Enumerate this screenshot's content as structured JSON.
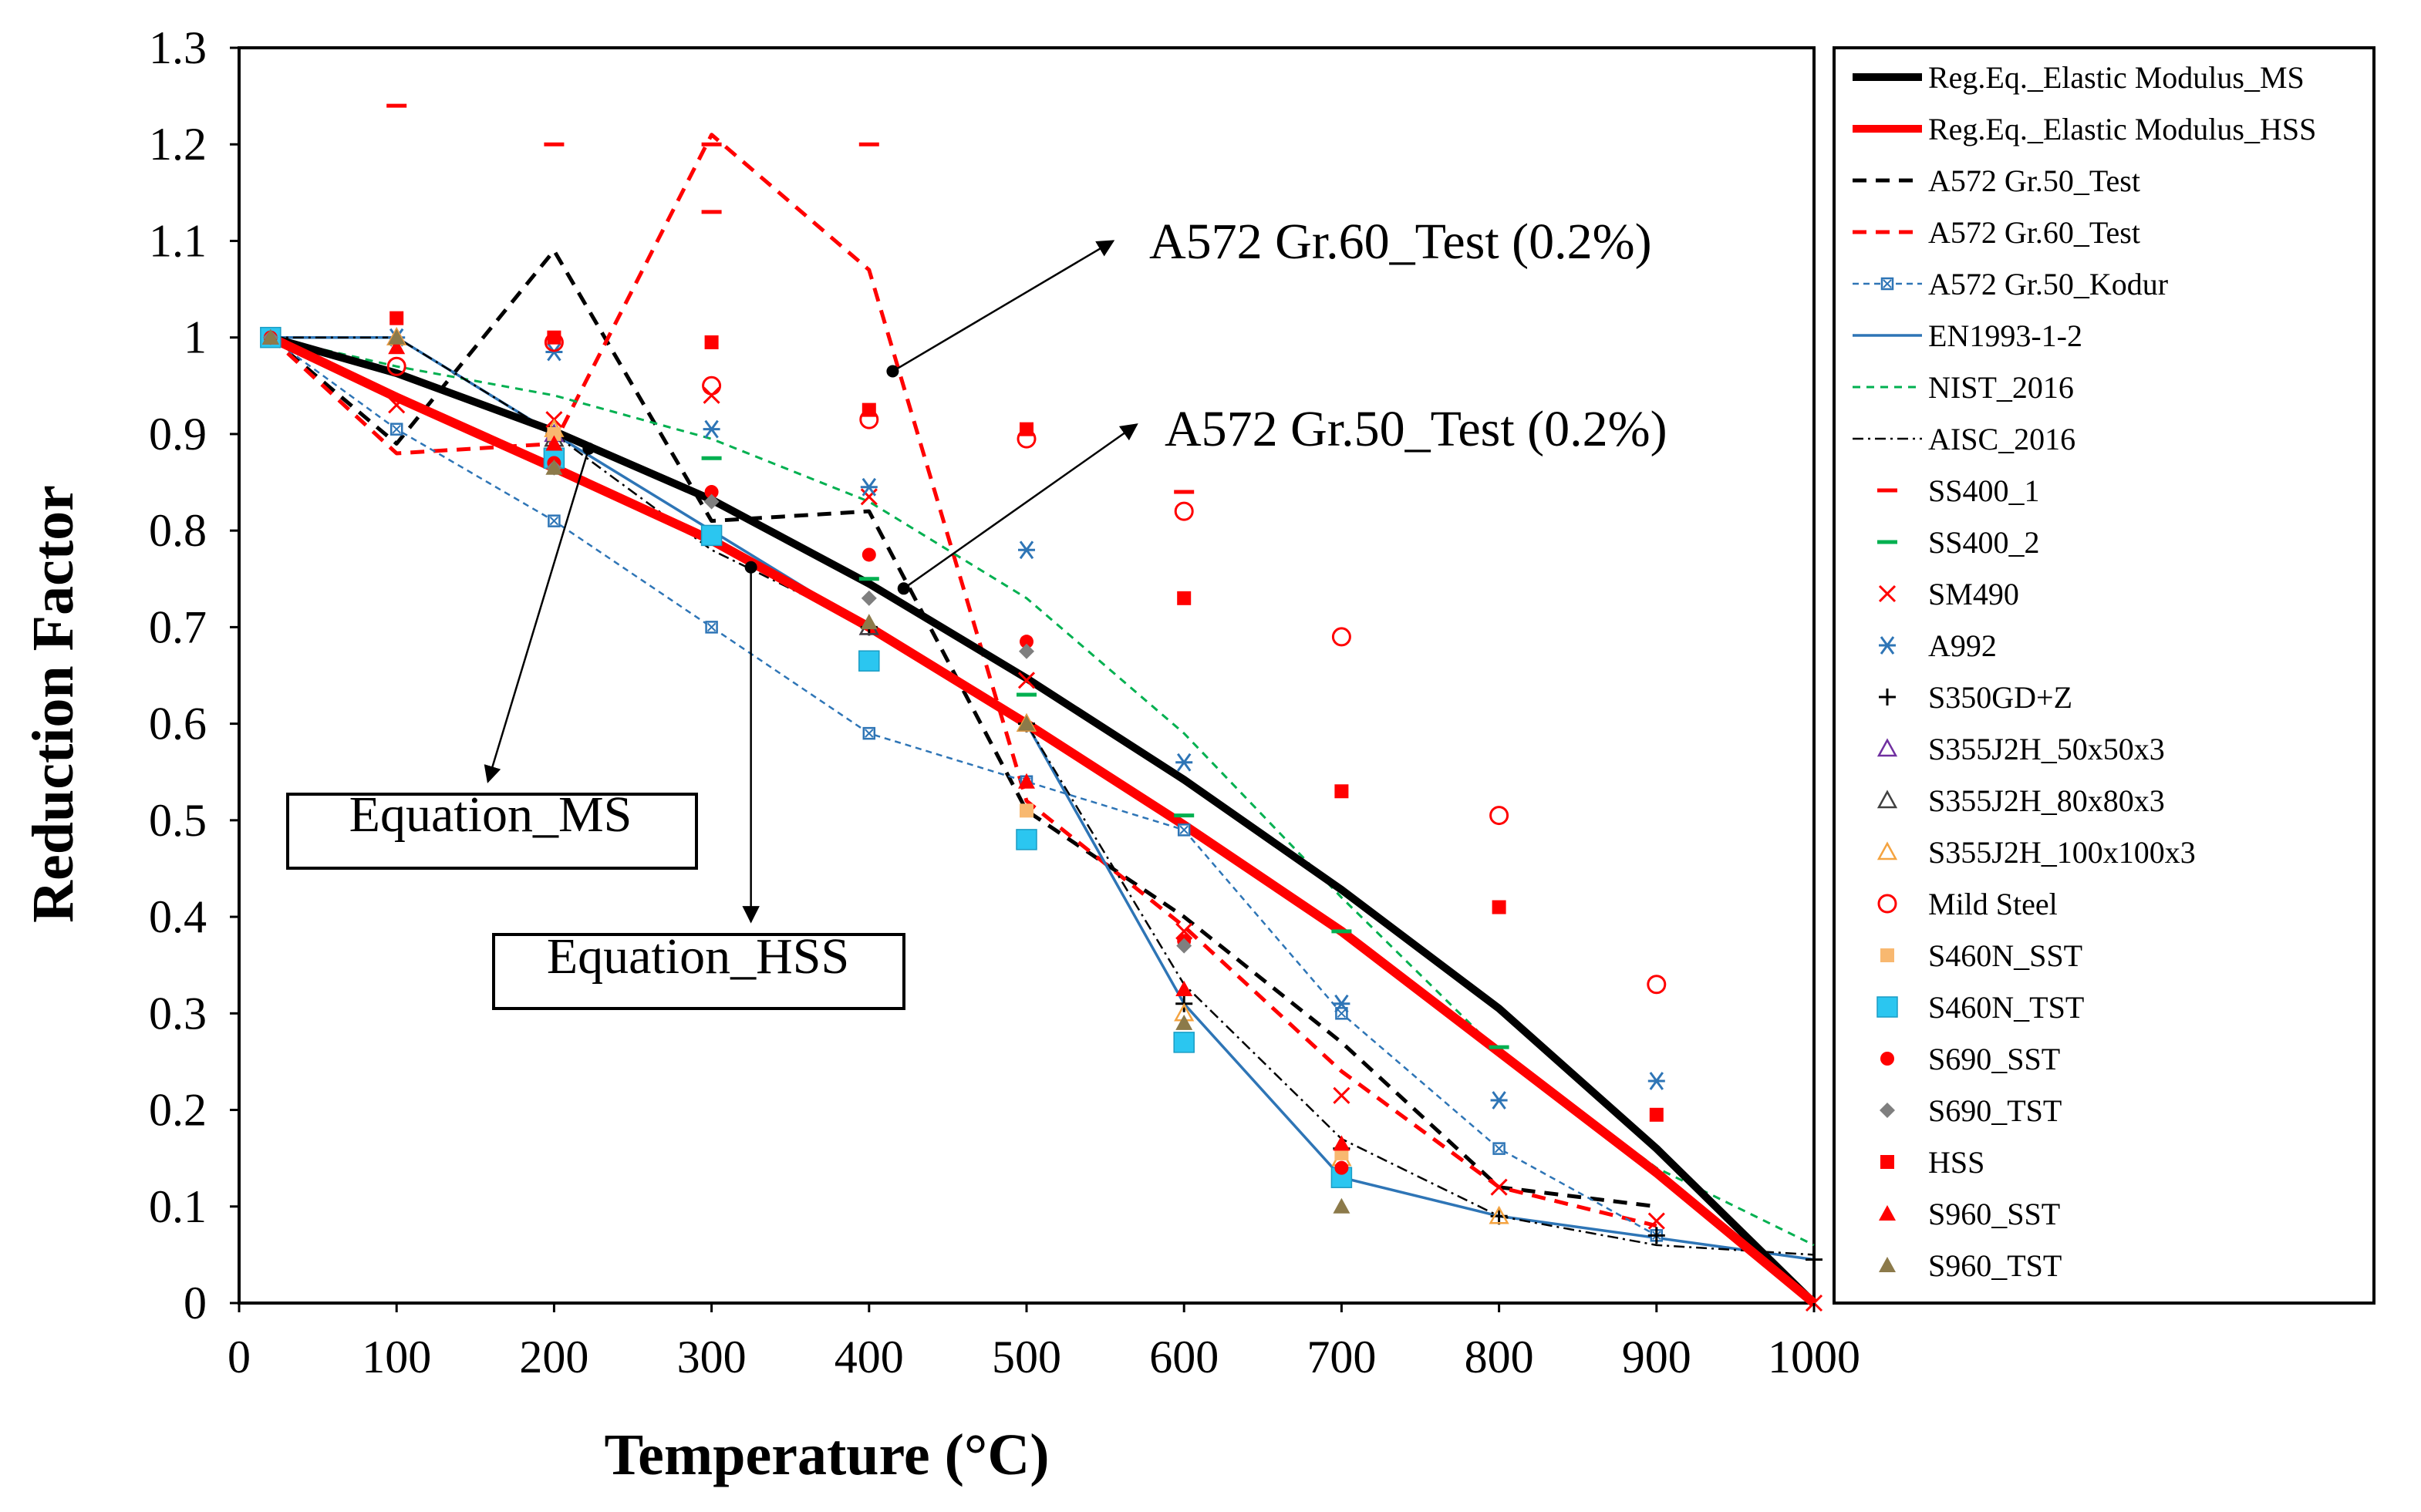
{
  "chart_data": {
    "type": "line",
    "xlabel": "Temperature (°C)",
    "ylabel": "Reduction Factor",
    "xlim": [
      0,
      1000
    ],
    "ylim": [
      0,
      1.3
    ],
    "xticks": [
      0,
      100,
      200,
      300,
      400,
      500,
      600,
      700,
      800,
      900,
      1000
    ],
    "yticks": [
      "0",
      "0.1",
      "0.2",
      "0.3",
      "0.4",
      "0.5",
      "0.6",
      "0.7",
      "0.8",
      "0.9",
      "1",
      "1.1",
      "1.2",
      "1.3"
    ],
    "legend_position": "right",
    "series": [
      {
        "name": "Reg.Eq._Elastic Modulus_MS",
        "style": "line",
        "color": "#000000",
        "width": 10,
        "dash": "",
        "x": [
          20,
          100,
          200,
          300,
          400,
          500,
          600,
          700,
          800,
          900,
          1000
        ],
        "y": [
          1.0,
          0.963,
          0.903,
          0.832,
          0.745,
          0.647,
          0.542,
          0.428,
          0.305,
          0.16,
          0.0
        ]
      },
      {
        "name": "Reg.Eq._Elastic Modulus_HSS",
        "style": "line",
        "color": "#ff0000",
        "width": 12,
        "dash": "",
        "x": [
          20,
          100,
          200,
          300,
          400,
          500,
          600,
          700,
          800,
          900,
          1000
        ],
        "y": [
          1.0,
          0.938,
          0.865,
          0.79,
          0.7,
          0.6,
          0.495,
          0.385,
          0.26,
          0.135,
          0.0
        ]
      },
      {
        "name": "A572 Gr.50_Test",
        "style": "line",
        "color": "#000000",
        "width": 5,
        "dash": "18,12",
        "x": [
          20,
          100,
          200,
          300,
          400,
          500,
          600,
          700,
          800,
          900
        ],
        "y": [
          1.0,
          0.89,
          1.09,
          0.81,
          0.82,
          0.51,
          0.4,
          0.27,
          0.12,
          0.1
        ]
      },
      {
        "name": "A572 Gr.60_Test",
        "style": "line",
        "color": "#ff0000",
        "width": 5,
        "dash": "18,12",
        "x": [
          20,
          100,
          200,
          300,
          400,
          500,
          600,
          700,
          800,
          900
        ],
        "y": [
          1.0,
          0.88,
          0.89,
          1.21,
          1.07,
          0.52,
          0.39,
          0.24,
          0.12,
          0.08
        ]
      },
      {
        "name": "A572 Gr.50_Kodur",
        "style": "line-marker",
        "color": "#2e75b6",
        "width": 2.5,
        "dash": "8,6",
        "marker": "boxx",
        "x": [
          20,
          100,
          200,
          300,
          400,
          500,
          600,
          700,
          800,
          900
        ],
        "y": [
          1.0,
          0.905,
          0.81,
          0.7,
          0.59,
          0.54,
          0.49,
          0.3,
          0.16,
          0.07
        ]
      },
      {
        "name": "EN1993-1-2",
        "style": "line",
        "color": "#2e75b6",
        "width": 3.5,
        "dash": "",
        "x": [
          20,
          100,
          500,
          600,
          700,
          800,
          1000
        ],
        "y": [
          1.0,
          1.0,
          0.6,
          0.31,
          0.13,
          0.09,
          0.045
        ]
      },
      {
        "name": "NIST_2016",
        "style": "line",
        "color": "#00b050",
        "width": 3,
        "dash": "10,8",
        "x": [
          20,
          100,
          200,
          300,
          400,
          500,
          600,
          700,
          800,
          900,
          1000
        ],
        "y": [
          1.0,
          0.97,
          0.94,
          0.895,
          0.83,
          0.73,
          0.59,
          0.42,
          0.26,
          0.14,
          0.06
        ]
      },
      {
        "name": "AISC_2016",
        "style": "line",
        "color": "#000000",
        "width": 2.5,
        "dash": "14,6,3,6",
        "x": [
          20,
          100,
          200,
          300,
          400,
          500,
          600,
          700,
          800,
          900,
          1000
        ],
        "y": [
          1.0,
          1.0,
          0.9,
          0.78,
          0.7,
          0.6,
          0.33,
          0.17,
          0.09,
          0.06,
          0.05
        ]
      },
      {
        "name": "SS400_1",
        "style": "marker",
        "color": "#ff0000",
        "marker": "dash",
        "x": [
          100,
          200,
          300,
          300,
          400,
          600
        ],
        "y": [
          1.24,
          1.2,
          1.13,
          1.2,
          1.2,
          0.84
        ]
      },
      {
        "name": "SS400_2",
        "style": "marker",
        "color": "#00b050",
        "marker": "dash",
        "x": [
          300,
          400,
          500,
          600,
          700,
          800
        ],
        "y": [
          0.875,
          0.75,
          0.63,
          0.505,
          0.385,
          0.265
        ]
      },
      {
        "name": "SM490",
        "style": "marker",
        "color": "#ff0000",
        "marker": "x",
        "x": [
          100,
          200,
          300,
          400,
          500,
          600,
          700,
          800,
          900,
          1000
        ],
        "y": [
          0.93,
          0.915,
          0.94,
          0.835,
          0.645,
          0.385,
          0.215,
          0.12,
          0.085,
          0.0
        ]
      },
      {
        "name": "A992",
        "style": "marker",
        "color": "#2e75b6",
        "marker": "star",
        "x": [
          100,
          200,
          300,
          400,
          500,
          600,
          700,
          800,
          900
        ],
        "y": [
          1.0,
          0.985,
          0.905,
          0.845,
          0.78,
          0.56,
          0.31,
          0.21,
          0.23
        ]
      },
      {
        "name": "S350GD+Z",
        "style": "marker",
        "color": "#000000",
        "marker": "plus",
        "x": [
          20,
          200,
          400,
          500,
          600,
          700,
          800,
          900,
          1000
        ],
        "y": [
          1.0,
          0.9,
          0.7,
          0.6,
          0.31,
          0.16,
          0.09,
          0.07,
          0.045
        ]
      },
      {
        "name": "S355J2H_50x50x3",
        "style": "marker",
        "color": "#7030a0",
        "marker": "tri-open",
        "x": [
          20,
          100,
          200,
          400
        ],
        "y": [
          1.0,
          1.0,
          0.9,
          0.7
        ]
      },
      {
        "name": "S355J2H_80x80x3",
        "style": "marker",
        "color": "#404040",
        "marker": "tri-open",
        "x": [
          20,
          200,
          400,
          500
        ],
        "y": [
          1.0,
          0.895,
          0.7,
          0.6
        ]
      },
      {
        "name": "S355J2H_100x100x3",
        "style": "marker",
        "color": "#f4a340",
        "marker": "tri-open",
        "x": [
          20,
          100,
          200,
          500,
          600,
          700,
          800
        ],
        "y": [
          1.0,
          1.0,
          0.905,
          0.6,
          0.3,
          0.15,
          0.09
        ]
      },
      {
        "name": "Mild Steel",
        "style": "marker",
        "color": "#ff0000",
        "marker": "circle-open",
        "x": [
          100,
          200,
          300,
          400,
          500,
          600,
          700,
          800,
          900
        ],
        "y": [
          0.97,
          0.995,
          0.95,
          0.915,
          0.895,
          0.82,
          0.69,
          0.505,
          0.33
        ]
      },
      {
        "name": "S460N_SST",
        "style": "marker",
        "color": "#f8b870",
        "marker": "square",
        "x": [
          20,
          200,
          500,
          700
        ],
        "y": [
          1.0,
          0.9,
          0.51,
          0.155
        ]
      },
      {
        "name": "S460N_TST",
        "style": "marker",
        "color": "#2bc6f0",
        "marker": "square-big",
        "x": [
          20,
          200,
          300,
          400,
          500,
          600,
          700
        ],
        "y": [
          1.0,
          0.875,
          0.795,
          0.665,
          0.48,
          0.27,
          0.13
        ]
      },
      {
        "name": "S690_SST",
        "style": "marker",
        "color": "#ff0000",
        "marker": "circle",
        "x": [
          20,
          200,
          300,
          400,
          500,
          600,
          700
        ],
        "y": [
          1.0,
          0.87,
          0.84,
          0.775,
          0.685,
          0.375,
          0.14
        ]
      },
      {
        "name": "S690_TST",
        "style": "marker",
        "color": "#7f7f7f",
        "marker": "diamond",
        "x": [
          20,
          200,
          300,
          400,
          500,
          600
        ],
        "y": [
          1.0,
          0.865,
          0.83,
          0.73,
          0.675,
          0.37
        ]
      },
      {
        "name": "HSS",
        "style": "marker",
        "color": "#ff0000",
        "marker": "square",
        "x": [
          100,
          200,
          300,
          400,
          500,
          600,
          700,
          800,
          900
        ],
        "y": [
          1.02,
          1.0,
          0.995,
          0.925,
          0.905,
          0.73,
          0.53,
          0.41,
          0.195
        ]
      },
      {
        "name": "S960_SST",
        "style": "marker",
        "color": "#ff0000",
        "marker": "tri",
        "x": [
          20,
          100,
          200,
          500,
          600,
          700
        ],
        "y": [
          1.0,
          0.99,
          0.89,
          0.54,
          0.325,
          0.165
        ]
      },
      {
        "name": "S960_TST",
        "style": "marker",
        "color": "#8c7a4a",
        "marker": "tri",
        "x": [
          20,
          100,
          200,
          400,
          500,
          600,
          700
        ],
        "y": [
          1.0,
          1.0,
          0.865,
          0.705,
          0.6,
          0.29,
          0.1
        ]
      }
    ],
    "annotations": [
      {
        "text": "A572 Gr.60_Test (0.2%)",
        "box": false,
        "tip": [
          415,
          0.965
        ],
        "head": [
          555,
          1.1
        ]
      },
      {
        "text": "A572 Gr.50_Test (0.2%)",
        "box": false,
        "tip": [
          422,
          0.74
        ],
        "head": [
          570,
          0.91
        ]
      },
      {
        "text": "Equation_MS",
        "box": true,
        "tip": [
          222,
          0.885
        ],
        "head": [
          158,
          0.54
        ]
      },
      {
        "text": "Equation_HSS",
        "box": true,
        "tip": [
          325,
          0.762
        ],
        "head": [
          325,
          0.395
        ]
      }
    ]
  }
}
